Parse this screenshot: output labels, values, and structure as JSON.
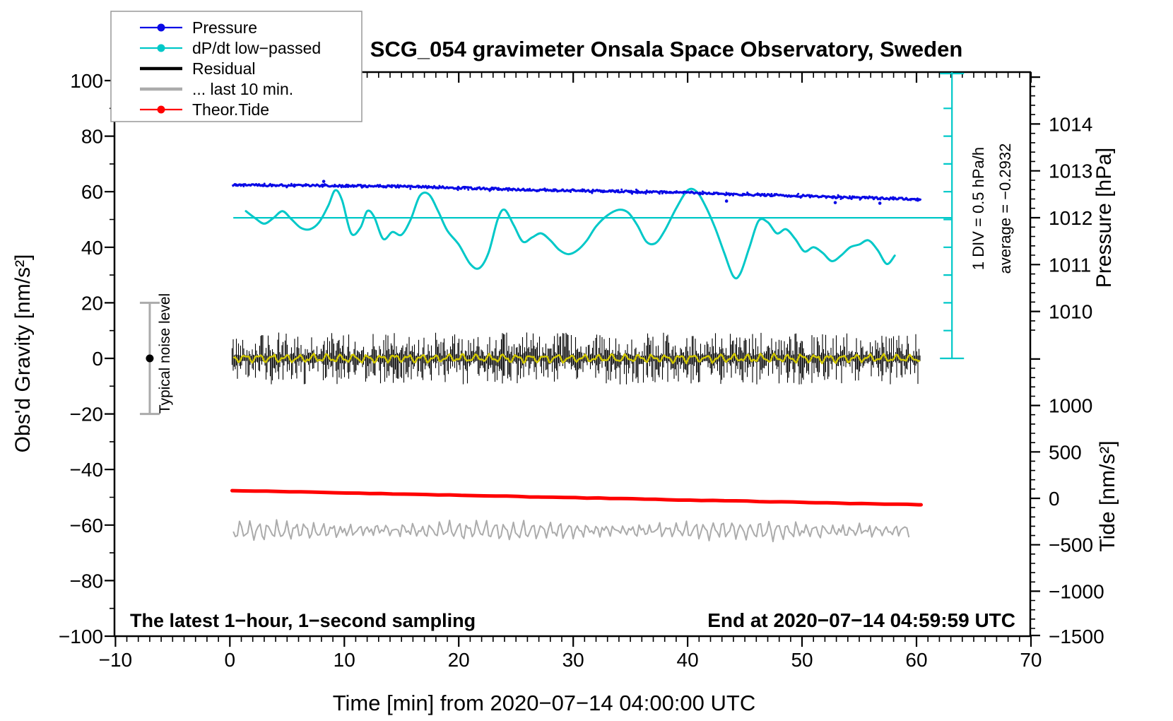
{
  "title": "SCG_054 gravimeter Onsala Space Observatory, Sweden",
  "annotations": {
    "sampling_note": "The latest 1−hour, 1−second sampling",
    "end_note": "End at 2020−07−14 04:59:59 UTC",
    "div_scale": "1 DIV = 0.5 hPa/h",
    "average": "average = −0.2932",
    "noise_label": "Typical noise level"
  },
  "colors": {
    "pressure": "#0A0AE6",
    "dpdt": "#00C8C8",
    "residual": "#000000",
    "residual_smooth": "#D2C800",
    "last10": "#ABABAB",
    "tide": "#FF0000",
    "noise_bar": "#ABABAB",
    "legend_border": "#999999",
    "frame": "#000000"
  },
  "legend": {
    "items": [
      {
        "label": "Pressure",
        "color": "#0A0AE6",
        "sample": "dot-line"
      },
      {
        "label": "dP/dt low−passed",
        "color": "#00C8C8",
        "sample": "dot-line"
      },
      {
        "label": "Residual",
        "color": "#000000",
        "sample": "thick-line"
      },
      {
        "label": "... last 10 min.",
        "color": "#ABABAB",
        "sample": "thick-line"
      },
      {
        "label": "Theor.Tide",
        "color": "#FF0000",
        "sample": "dot-line"
      }
    ]
  },
  "axes": {
    "x": {
      "title": "Time [min] from 2020−07−14 04:00:00 UTC",
      "range": [
        -10,
        70
      ],
      "major_ticks": [
        -10,
        0,
        10,
        20,
        30,
        40,
        50,
        60,
        70
      ],
      "minor_step": 1
    },
    "y_left": {
      "title": "Obs'd Gravity [nm/s²]",
      "range": [
        -100,
        100
      ],
      "major_ticks": [
        100,
        80,
        60,
        40,
        20,
        0,
        -20,
        -40,
        -60,
        -80,
        -100
      ],
      "minor_step": 10
    },
    "y_right_pressure": {
      "title": "Pressure [hPa]",
      "major_ticks": [
        1014,
        1013,
        1012,
        1011,
        1010
      ],
      "minor_step": 0.2
    },
    "y_right_tide": {
      "title": "Tide [nm/s²]",
      "major_ticks": [
        1000,
        500,
        0,
        -500,
        -1000,
        -1500
      ],
      "minor_step": 100
    }
  },
  "chart_data": {
    "type": "line",
    "title": "SCG_054 gravimeter Onsala Space Observatory, Sweden",
    "xlabel": "Time [min] from 2020−07−14 04:00:00 UTC",
    "xlim": [
      -10,
      70
    ],
    "gravity_ylim": [
      -100,
      100
    ],
    "grid": false,
    "legend_position": "top-left",
    "scale_bar": {
      "label": "1 DIV = 0.5 hPa/h",
      "time_position": 63.1,
      "gravity_span": [
        0,
        100
      ],
      "div_gravity_units": 10
    },
    "average_line": {
      "label": "average = −0.2932",
      "gravity_level": 50.6,
      "t_range": [
        0.3,
        63.1
      ]
    },
    "noise_bar": {
      "label": "Typical noise level",
      "time_position": -7,
      "center_gravity": 0,
      "half_range_gravity": 20
    },
    "series": [
      {
        "name": "Pressure",
        "axis": "pressure_hPa",
        "color": "#0A0AE6",
        "style": "noisy-line",
        "points": [
          [
            0.2,
            1012.7
          ],
          [
            5,
            1012.69
          ],
          [
            10,
            1012.68
          ],
          [
            14,
            1012.67
          ],
          [
            18,
            1012.65
          ],
          [
            22,
            1012.62
          ],
          [
            26,
            1012.6
          ],
          [
            30,
            1012.58
          ],
          [
            33,
            1012.57
          ],
          [
            36,
            1012.55
          ],
          [
            40,
            1012.54
          ],
          [
            44,
            1012.5
          ],
          [
            48,
            1012.48
          ],
          [
            52,
            1012.45
          ],
          [
            56,
            1012.42
          ],
          [
            60.4,
            1012.39
          ]
        ]
      },
      {
        "name": "dP/dt low−passed",
        "axis": "gravity_nms2",
        "color": "#00C8C8",
        "style": "smooth-line",
        "points": [
          [
            1.4,
            53
          ],
          [
            2.2,
            50.5
          ],
          [
            3.0,
            48.5
          ],
          [
            3.8,
            50.5
          ],
          [
            4.6,
            53
          ],
          [
            5.4,
            50
          ],
          [
            6.2,
            47
          ],
          [
            7.0,
            46.5
          ],
          [
            7.8,
            49
          ],
          [
            8.6,
            55
          ],
          [
            9.2,
            60.5
          ],
          [
            9.8,
            57
          ],
          [
            10.6,
            45
          ],
          [
            11.4,
            47
          ],
          [
            12.0,
            53
          ],
          [
            12.6,
            51
          ],
          [
            13.4,
            43
          ],
          [
            14.2,
            45.5
          ],
          [
            15.0,
            44.5
          ],
          [
            15.8,
            50
          ],
          [
            16.6,
            58.5
          ],
          [
            17.4,
            59
          ],
          [
            18.2,
            53
          ],
          [
            19.0,
            46
          ],
          [
            20.0,
            41
          ],
          [
            21.0,
            34
          ],
          [
            21.8,
            32.5
          ],
          [
            22.6,
            38
          ],
          [
            23.4,
            50
          ],
          [
            24.0,
            53.5
          ],
          [
            24.8,
            48
          ],
          [
            25.6,
            42
          ],
          [
            26.4,
            43.5
          ],
          [
            27.2,
            45
          ],
          [
            28.0,
            42.5
          ],
          [
            28.8,
            39
          ],
          [
            29.6,
            37.5
          ],
          [
            30.4,
            39
          ],
          [
            31.2,
            42.5
          ],
          [
            32.0,
            47.5
          ],
          [
            33.0,
            51.5
          ],
          [
            34.0,
            53.5
          ],
          [
            34.8,
            52.5
          ],
          [
            35.6,
            48
          ],
          [
            36.4,
            42
          ],
          [
            37.2,
            41.5
          ],
          [
            38.0,
            46
          ],
          [
            39.0,
            54
          ],
          [
            40.0,
            60.5
          ],
          [
            40.8,
            60
          ],
          [
            41.6,
            54.5
          ],
          [
            42.4,
            47
          ],
          [
            43.2,
            38
          ],
          [
            44.0,
            29.5
          ],
          [
            44.6,
            30.5
          ],
          [
            45.4,
            40
          ],
          [
            46.2,
            49.5
          ],
          [
            47.0,
            49
          ],
          [
            47.8,
            45
          ],
          [
            48.6,
            46.5
          ],
          [
            49.4,
            43
          ],
          [
            50.2,
            38.5
          ],
          [
            51.0,
            40
          ],
          [
            51.8,
            38
          ],
          [
            52.6,
            35
          ],
          [
            53.4,
            37
          ],
          [
            54.2,
            40
          ],
          [
            55.0,
            41
          ],
          [
            55.8,
            42.5
          ],
          [
            56.6,
            39
          ],
          [
            57.4,
            34
          ],
          [
            58.1,
            37
          ]
        ]
      },
      {
        "name": "Residual",
        "axis": "gravity_nms2",
        "color": "#000000",
        "style": "noise-band",
        "mean": 0,
        "typical_amplitude": 4,
        "max_spike": 9,
        "t_range": [
          0.2,
          60.4
        ]
      },
      {
        "name": "Residual low-passed overlay",
        "axis": "gravity_nms2",
        "color": "#D2C800",
        "style": "smooth-overlay",
        "mean": 0,
        "amplitude": 1.3,
        "t_range": [
          0.3,
          60.3
        ]
      },
      {
        "name": "... last 10 min.",
        "axis": "gravity_nms2",
        "color": "#ABABAB",
        "style": "wiggly-line",
        "mean": -62,
        "amplitude": 3.5,
        "t_range": [
          0.3,
          59.5
        ]
      },
      {
        "name": "Theor.Tide",
        "axis": "tide_nms2",
        "color": "#FF0000",
        "style": "thick-line",
        "points": [
          [
            0.2,
            84
          ],
          [
            10,
            59
          ],
          [
            20,
            33
          ],
          [
            30,
            8
          ],
          [
            40,
            -18
          ],
          [
            50,
            -44
          ],
          [
            60.4,
            -69
          ]
        ]
      }
    ]
  }
}
